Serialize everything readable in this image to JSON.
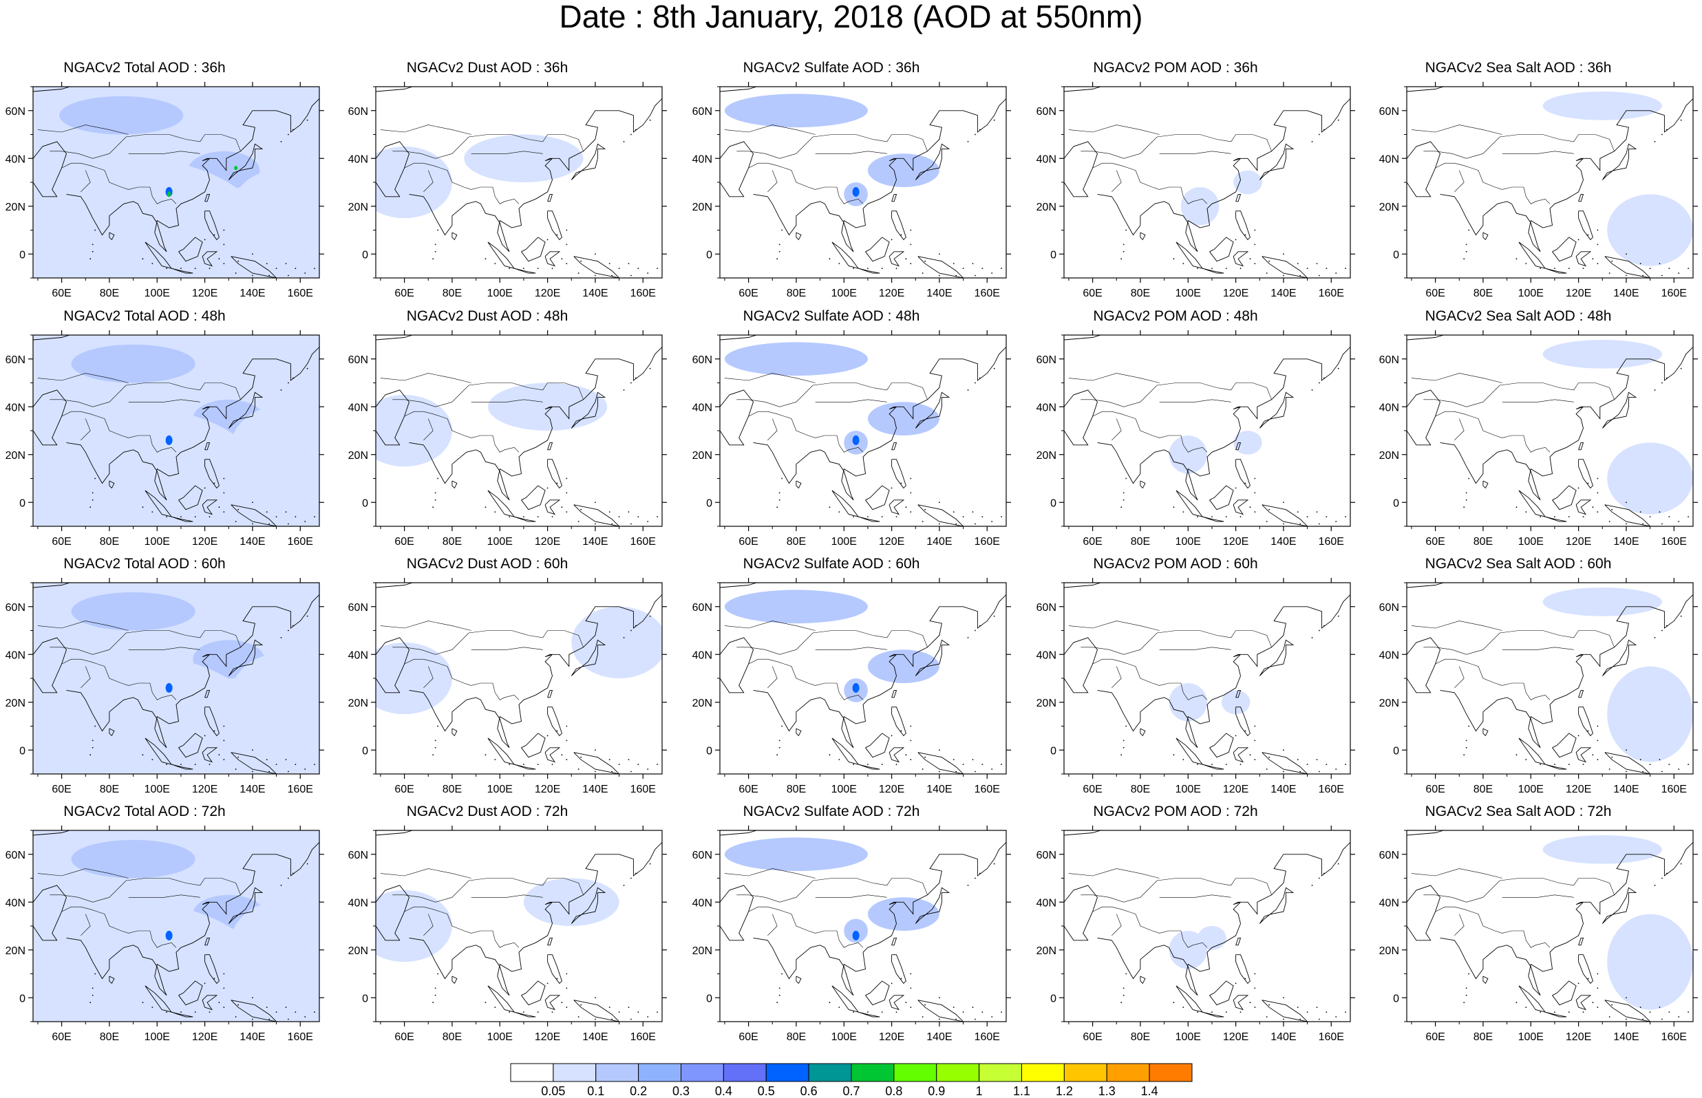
{
  "title": "Date : 8th January, 2018 (AOD at 550nm)",
  "lon_ticks": [
    "60E",
    "80E",
    "100E",
    "120E",
    "140E",
    "160E"
  ],
  "lon_values": [
    60,
    80,
    100,
    120,
    140,
    160
  ],
  "lat_ticks": [
    "60N",
    "40N",
    "20N",
    "0"
  ],
  "lat_values": [
    60,
    40,
    20,
    0
  ],
  "map_extent": {
    "lon": [
      48,
      168
    ],
    "lat": [
      -10,
      70
    ]
  },
  "columns": [
    {
      "key": "total",
      "titles": [
        "NGACv2 Total AOD : 36h",
        "NGACv2 Total AOD : 48h",
        "NGACv2 Total AOD : 60h",
        "NGACv2 Total AOD : 72h"
      ]
    },
    {
      "key": "dust",
      "titles": [
        "NGACv2 Dust AOD : 36h",
        "NGACv2 Dust AOD : 48h",
        "NGACv2 Dust AOD : 60h",
        "NGACv2 Dust AOD : 72h"
      ]
    },
    {
      "key": "sulfate",
      "titles": [
        "NGACv2 Sulfate AOD : 36h",
        "NGACv2 Sulfate AOD : 48h",
        "NGACv2 Sulfate AOD : 60h",
        "NGACv2 Sulfate AOD : 72h"
      ]
    },
    {
      "key": "pom",
      "titles": [
        "NGACv2 POM AOD : 36h",
        "NGACv2 POM AOD : 48h",
        "NGACv2 POM AOD : 60h",
        "NGACv2 POM AOD : 72h"
      ]
    },
    {
      "key": "seasalt",
      "titles": [
        "NGACv2 Sea Salt AOD : 36h",
        "NGACv2 Sea Salt AOD : 48h",
        "NGACv2 Sea Salt AOD : 60h",
        "NGACv2 Sea Salt  AOD : 72h"
      ]
    }
  ],
  "colorbar": {
    "labels": [
      "0.05",
      "0.1",
      "0.2",
      "0.3",
      "0.4",
      "0.5",
      "0.6",
      "0.7",
      "0.8",
      "0.9",
      "1",
      "1.1",
      "1.2",
      "1.3",
      "1.4"
    ],
    "colors": [
      "#ffffff",
      "#d6e2ff",
      "#b5c9ff",
      "#8fb2ff",
      "#7f96ff",
      "#6370f8",
      "#0063ff",
      "#009696",
      "#00c633",
      "#63ff00",
      "#96ff00",
      "#c6ff33",
      "#ffff00",
      "#ffc600",
      "#ffa000",
      "#ff7c00",
      "#ff1900"
    ]
  },
  "aod_fields": {
    "total": [
      [
        [
          85,
          58,
          26,
          8,
          2
        ],
        [
          128,
          35,
          15,
          8,
          2
        ],
        [
          105,
          25,
          6,
          5,
          2
        ],
        [
          40,
          20,
          20,
          15,
          1
        ],
        [
          90,
          0,
          60,
          40,
          1
        ],
        [
          150,
          15,
          20,
          20,
          1
        ]
      ],
      [
        [
          90,
          58,
          26,
          8,
          2
        ],
        [
          130,
          35,
          15,
          8,
          2
        ],
        [
          105,
          25,
          6,
          6,
          2
        ],
        [
          40,
          25,
          20,
          15,
          1
        ],
        [
          90,
          0,
          60,
          40,
          1
        ],
        [
          150,
          20,
          20,
          20,
          1
        ]
      ],
      [
        [
          90,
          58,
          26,
          8,
          2
        ],
        [
          130,
          38,
          15,
          8,
          2
        ],
        [
          105,
          27,
          6,
          5,
          2
        ],
        [
          40,
          25,
          20,
          15,
          1
        ],
        [
          90,
          0,
          60,
          40,
          1
        ],
        [
          150,
          20,
          20,
          20,
          1
        ]
      ],
      [
        [
          90,
          58,
          26,
          8,
          2
        ],
        [
          130,
          35,
          15,
          8,
          2
        ],
        [
          105,
          28,
          6,
          5,
          2
        ],
        [
          40,
          25,
          20,
          15,
          1
        ],
        [
          90,
          0,
          60,
          40,
          1
        ],
        [
          150,
          20,
          20,
          20,
          1
        ]
      ]
    ],
    "dust": [
      [
        [
          60,
          30,
          20,
          15,
          1
        ],
        [
          110,
          40,
          25,
          10,
          1
        ]
      ],
      [
        [
          60,
          30,
          20,
          15,
          1
        ],
        [
          120,
          40,
          25,
          10,
          1
        ]
      ],
      [
        [
          60,
          30,
          20,
          15,
          1
        ],
        [
          150,
          45,
          20,
          15,
          1
        ]
      ],
      [
        [
          60,
          30,
          20,
          15,
          1
        ],
        [
          130,
          40,
          20,
          10,
          1
        ]
      ]
    ],
    "sulfate": [
      [
        [
          80,
          60,
          30,
          7,
          2
        ],
        [
          125,
          35,
          15,
          7,
          2
        ],
        [
          105,
          25,
          5,
          5,
          2
        ]
      ],
      [
        [
          80,
          60,
          30,
          7,
          2
        ],
        [
          125,
          35,
          15,
          7,
          2
        ],
        [
          105,
          25,
          5,
          5,
          2
        ]
      ],
      [
        [
          80,
          60,
          30,
          7,
          2
        ],
        [
          125,
          35,
          15,
          7,
          2
        ],
        [
          105,
          25,
          5,
          5,
          2
        ]
      ],
      [
        [
          80,
          60,
          30,
          7,
          2
        ],
        [
          125,
          35,
          15,
          7,
          2
        ],
        [
          105,
          28,
          5,
          5,
          2
        ]
      ]
    ],
    "pom": [
      [
        [
          105,
          20,
          8,
          8,
          1
        ],
        [
          125,
          30,
          6,
          5,
          1
        ]
      ],
      [
        [
          100,
          20,
          8,
          8,
          1
        ],
        [
          125,
          25,
          6,
          5,
          1
        ]
      ],
      [
        [
          100,
          20,
          8,
          8,
          1
        ],
        [
          120,
          20,
          6,
          5,
          1
        ]
      ],
      [
        [
          100,
          20,
          8,
          8,
          1
        ],
        [
          110,
          25,
          6,
          5,
          1
        ]
      ]
    ],
    "seasalt": [
      [
        [
          150,
          10,
          18,
          15,
          1
        ],
        [
          130,
          62,
          25,
          6,
          1
        ]
      ],
      [
        [
          150,
          10,
          18,
          15,
          1
        ],
        [
          130,
          62,
          25,
          6,
          1
        ]
      ],
      [
        [
          150,
          15,
          18,
          20,
          1
        ],
        [
          130,
          62,
          25,
          6,
          1
        ]
      ],
      [
        [
          150,
          15,
          18,
          20,
          1
        ],
        [
          130,
          62,
          25,
          6,
          1
        ]
      ]
    ]
  }
}
